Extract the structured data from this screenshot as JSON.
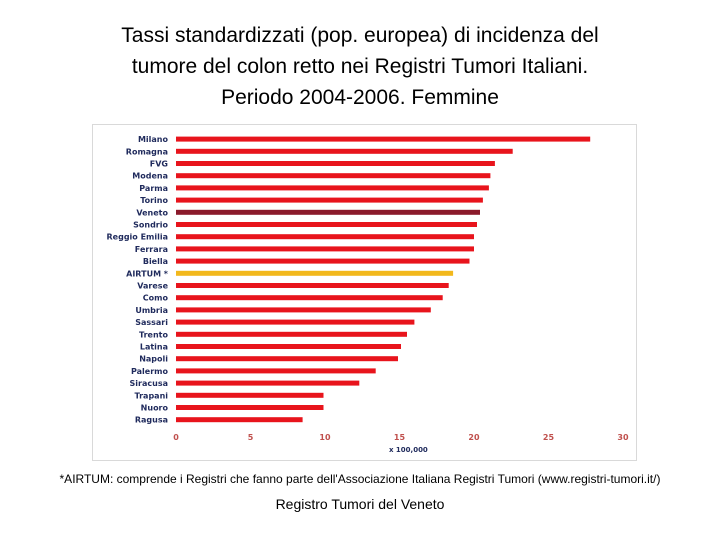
{
  "title_lines": [
    "Tassi standardizzati (pop. europea) di incidenza del",
    "tumore del colon retto nei Registri Tumori Italiani.",
    "Periodo 2004-2006. Femmine"
  ],
  "footnote": "*AIRTUM: comprende i Registri che fanno parte dell'Associazione Italiana Registri Tumori (www.registri-tumori.it/)",
  "credit": "Registro Tumori del Veneto",
  "colors": {
    "bar": "#e8141c",
    "veneto": "#8b1a2b",
    "airtum": "#f2b81c",
    "axis_text": "#c0504d",
    "label_text": "#1f2a5c"
  },
  "chart_data": {
    "type": "bar",
    "orientation": "horizontal",
    "categories": [
      "Milano",
      "Romagna",
      "FVG",
      "Modena",
      "Parma",
      "Torino",
      "Veneto",
      "Sondrio",
      "Reggio Emilia",
      "Ferrara",
      "Biella",
      "AIRTUM *",
      "Varese",
      "Como",
      "Umbria",
      "Sassari",
      "Trento",
      "Latina",
      "Napoli",
      "Palermo",
      "Siracusa",
      "Trapani",
      "Nuoro",
      "Ragusa"
    ],
    "values": [
      27.8,
      22.6,
      21.4,
      21.1,
      21.0,
      20.6,
      20.4,
      20.2,
      20.0,
      20.0,
      19.7,
      18.6,
      18.3,
      17.9,
      17.1,
      16.0,
      15.5,
      15.1,
      14.9,
      13.4,
      12.3,
      9.9,
      9.9,
      8.5
    ],
    "highlight": {
      "Veneto": "veneto",
      "AIRTUM *": "airtum"
    },
    "xticks": [
      "0",
      "5",
      "10",
      "15",
      "20",
      "25",
      "30"
    ],
    "xlim": [
      0,
      30
    ],
    "xlabel": "x 100,000",
    "grid": false,
    "legend": "none"
  }
}
